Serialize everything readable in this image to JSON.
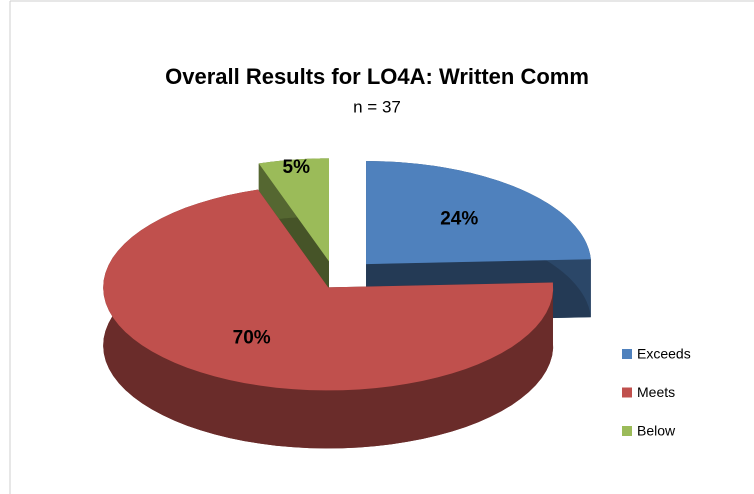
{
  "chart_data": {
    "type": "pie",
    "title": "Overall Results for LO4A: Written Comm",
    "subtitle": "n = 37",
    "categories": [
      "Exceeds",
      "Meets",
      "Below"
    ],
    "values": [
      24,
      70,
      5
    ],
    "value_labels": [
      "24%",
      "70%",
      "5%"
    ],
    "colors": [
      "#4f81bd",
      "#c0504d",
      "#9bbb59"
    ],
    "legend": "right",
    "exploded": true,
    "three_d": true
  }
}
